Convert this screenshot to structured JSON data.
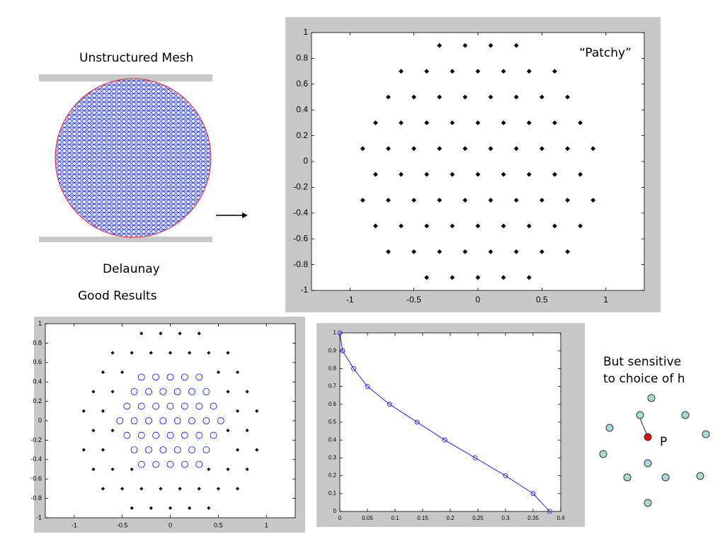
{
  "texts": {
    "mesh_title": "Unstructured Mesh",
    "delaunay": "Delaunay",
    "good": "Good Results",
    "note": [
      "But sensitive",
      "to choice of h"
    ],
    "point": "P"
  },
  "chart_data": [
    {
      "type": "scatter",
      "annotation": "“Patchy”",
      "xlim": [
        -1.3,
        1.3
      ],
      "xticks": [
        -1,
        -0.5,
        0,
        0.5,
        1
      ],
      "ylim": [
        -1,
        1
      ],
      "yticks": [
        -1,
        -0.8,
        -0.6,
        -0.4,
        -0.2,
        0,
        0.2,
        0.4,
        0.6,
        0.8,
        1
      ],
      "series": [
        {
          "color": "#000000",
          "marker": "dot",
          "x": [
            -0.4,
            -0.2,
            0,
            0.2,
            0.4,
            -0.7,
            -0.5,
            -0.3,
            -0.1,
            0.1,
            0.3,
            0.5,
            0.7,
            -0.8,
            -0.6,
            -0.4,
            -0.2,
            0,
            0.2,
            0.4,
            0.6,
            0.8,
            -0.9,
            -0.7,
            -0.5,
            -0.3,
            -0.1,
            0.1,
            0.3,
            0.5,
            0.7,
            0.9,
            -0.8,
            -0.6,
            -0.4,
            -0.2,
            0,
            0.2,
            0.4,
            0.6,
            0.8,
            -0.9,
            -0.7,
            -0.5,
            -0.3,
            -0.1,
            0.1,
            0.3,
            0.5,
            0.7,
            0.9,
            -0.8,
            -0.6,
            -0.4,
            -0.2,
            0,
            0.2,
            0.4,
            0.6,
            0.8,
            -0.7,
            -0.5,
            -0.3,
            -0.1,
            0.1,
            0.3,
            0.5,
            0.7,
            -0.6,
            -0.4,
            -0.2,
            0,
            0.2,
            0.4,
            0.6,
            -0.3,
            -0.1,
            0.1,
            0.3
          ],
          "y": [
            -0.9,
            -0.9,
            -0.9,
            -0.9,
            -0.9,
            -0.7,
            -0.7,
            -0.7,
            -0.7,
            -0.7,
            -0.7,
            -0.7,
            -0.7,
            -0.5,
            -0.5,
            -0.5,
            -0.5,
            -0.5,
            -0.5,
            -0.5,
            -0.5,
            -0.5,
            -0.3,
            -0.3,
            -0.3,
            -0.3,
            -0.3,
            -0.3,
            -0.3,
            -0.3,
            -0.3,
            -0.3,
            -0.1,
            -0.1,
            -0.1,
            -0.1,
            -0.1,
            -0.1,
            -0.1,
            -0.1,
            -0.1,
            0.1,
            0.1,
            0.1,
            0.1,
            0.1,
            0.1,
            0.1,
            0.1,
            0.1,
            0.1,
            0.3,
            0.3,
            0.3,
            0.3,
            0.3,
            0.3,
            0.3,
            0.3,
            0.3,
            0.5,
            0.5,
            0.5,
            0.5,
            0.5,
            0.5,
            0.5,
            0.5,
            0.7,
            0.7,
            0.7,
            0.7,
            0.7,
            0.7,
            0.7,
            0.9,
            0.9,
            0.9,
            0.9
          ]
        }
      ]
    },
    {
      "type": "scatter",
      "xlim": [
        -1.3,
        1.3
      ],
      "xticks": [
        -1,
        -0.5,
        0,
        0.5,
        1
      ],
      "ylim": [
        -1,
        1
      ],
      "yticks": [
        -1,
        -0.8,
        -0.6,
        -0.4,
        -0.2,
        0,
        0.2,
        0.4,
        0.6,
        0.8,
        1
      ],
      "series": [
        {
          "color": "#000000",
          "marker": "dot",
          "x": [
            -0.4,
            -0.2,
            0,
            0.2,
            0.4,
            -0.7,
            -0.5,
            -0.3,
            -0.1,
            0.1,
            0.3,
            0.5,
            0.7,
            -0.8,
            -0.6,
            -0.4,
            0.4,
            0.6,
            0.8,
            -0.9,
            -0.7,
            0.7,
            0.9,
            -0.8,
            -0.6,
            0.6,
            0.8,
            -0.9,
            -0.7,
            0.7,
            0.9,
            -0.8,
            -0.6,
            0.6,
            0.8,
            -0.7,
            -0.5,
            0.5,
            0.7,
            -0.6,
            -0.4,
            -0.2,
            0,
            0.2,
            0.4,
            0.6,
            -0.3,
            -0.1,
            0.1,
            0.3
          ],
          "y": [
            -0.9,
            -0.9,
            -0.9,
            -0.9,
            -0.9,
            -0.7,
            -0.7,
            -0.7,
            -0.7,
            -0.7,
            -0.7,
            -0.7,
            -0.7,
            -0.5,
            -0.5,
            -0.5,
            -0.5,
            -0.5,
            -0.5,
            -0.3,
            -0.3,
            -0.3,
            -0.3,
            -0.1,
            -0.1,
            -0.1,
            -0.1,
            0.1,
            0.1,
            0.1,
            0.1,
            0.3,
            0.3,
            0.3,
            0.3,
            0.5,
            0.5,
            0.5,
            0.5,
            0.7,
            0.7,
            0.7,
            0.7,
            0.7,
            0.7,
            0.7,
            0.9,
            0.9,
            0.9,
            0.9
          ]
        },
        {
          "color": "#0000ff",
          "marker": "circle",
          "x": [
            -0.3,
            -0.15,
            0,
            0.15,
            0.3,
            -0.375,
            -0.225,
            -0.075,
            0.075,
            0.225,
            0.375,
            -0.45,
            -0.3,
            -0.15,
            0,
            0.15,
            0.3,
            0.45,
            -0.525,
            -0.375,
            -0.225,
            -0.075,
            0.075,
            0.225,
            0.375,
            0.525,
            -0.45,
            -0.3,
            -0.15,
            0,
            0.15,
            0.3,
            0.45,
            -0.375,
            -0.225,
            -0.075,
            0.075,
            0.225,
            0.375,
            -0.3,
            -0.15,
            0,
            0.15,
            0.3
          ],
          "y": [
            -0.45,
            -0.45,
            -0.45,
            -0.45,
            -0.45,
            -0.3,
            -0.3,
            -0.3,
            -0.3,
            -0.3,
            -0.3,
            -0.15,
            -0.15,
            -0.15,
            -0.15,
            -0.15,
            -0.15,
            -0.15,
            0,
            0,
            0,
            0,
            0,
            0,
            0,
            0,
            0.15,
            0.15,
            0.15,
            0.15,
            0.15,
            0.15,
            0.15,
            0.3,
            0.3,
            0.3,
            0.3,
            0.3,
            0.3,
            0.45,
            0.45,
            0.45,
            0.45,
            0.45
          ]
        }
      ]
    },
    {
      "type": "line",
      "xlim": [
        0,
        0.4
      ],
      "xticks": [
        0,
        0.05,
        0.1,
        0.15,
        0.2,
        0.25,
        0.3,
        0.35,
        0.4
      ],
      "ylim": [
        0,
        1
      ],
      "yticks": [
        0,
        0.1,
        0.2,
        0.3,
        0.4,
        0.5,
        0.6,
        0.7,
        0.8,
        0.9,
        1
      ],
      "series": [
        {
          "color": "#0000ff",
          "marker": "circle",
          "x": [
            0,
            0.005,
            0.025,
            0.05,
            0.09,
            0.14,
            0.19,
            0.245,
            0.3,
            0.35,
            0.38
          ],
          "y": [
            1,
            0.9,
            0.8,
            0.7,
            0.6,
            0.5,
            0.4,
            0.3,
            0.2,
            0.1,
            0
          ]
        }
      ]
    }
  ]
}
